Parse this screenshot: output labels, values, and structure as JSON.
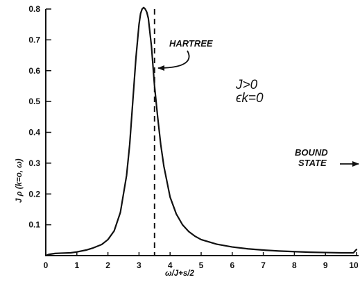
{
  "chart_data": {
    "type": "line",
    "xlabel": "ω/J+s/2",
    "ylabel": "J ρ (k=o, ω)",
    "xlim": [
      0,
      10
    ],
    "ylim": [
      0,
      0.8
    ],
    "x_ticks": [
      "0",
      "1",
      "2",
      "3",
      "4",
      "5",
      "6",
      "7",
      "8",
      "9",
      "10"
    ],
    "y_ticks": [
      "0.1",
      "0.2",
      "0.3",
      "0.4",
      "0.5",
      "0.6",
      "0.7",
      "0.8"
    ],
    "grid": false,
    "series": [
      {
        "x": [
          0.0,
          0.1,
          0.3,
          0.5,
          0.8,
          1.0,
          1.3,
          1.5,
          1.8,
          2.0,
          2.2,
          2.4,
          2.6,
          2.7,
          2.8,
          2.9,
          3.0,
          3.05,
          3.1,
          3.15,
          3.2,
          3.25,
          3.3,
          3.4,
          3.5,
          3.6,
          3.7,
          3.8,
          4.0,
          4.2,
          4.4,
          4.6,
          4.8,
          5.0,
          5.5,
          6.0,
          6.5,
          7.0,
          7.5,
          8.0,
          8.5,
          9.0,
          9.5,
          9.9,
          10.0
        ],
        "y": [
          0.0,
          0.004,
          0.007,
          0.008,
          0.009,
          0.012,
          0.018,
          0.024,
          0.036,
          0.052,
          0.08,
          0.14,
          0.26,
          0.36,
          0.5,
          0.64,
          0.75,
          0.785,
          0.8,
          0.805,
          0.8,
          0.79,
          0.77,
          0.68,
          0.55,
          0.45,
          0.36,
          0.29,
          0.19,
          0.135,
          0.1,
          0.078,
          0.063,
          0.052,
          0.037,
          0.028,
          0.022,
          0.018,
          0.015,
          0.013,
          0.011,
          0.01,
          0.009,
          0.009,
          0.02
        ]
      }
    ],
    "reference_line": {
      "x": 3.5,
      "style": "dashed",
      "label": "HARTREE"
    },
    "annotations": [
      {
        "text": "HARTREE",
        "arrow_to": [
          3.55,
          0.6
        ]
      },
      {
        "text": "BOUND",
        "line2": "STATE"
      },
      {
        "text": "J>0",
        "line2": "ϵk=0"
      }
    ]
  }
}
